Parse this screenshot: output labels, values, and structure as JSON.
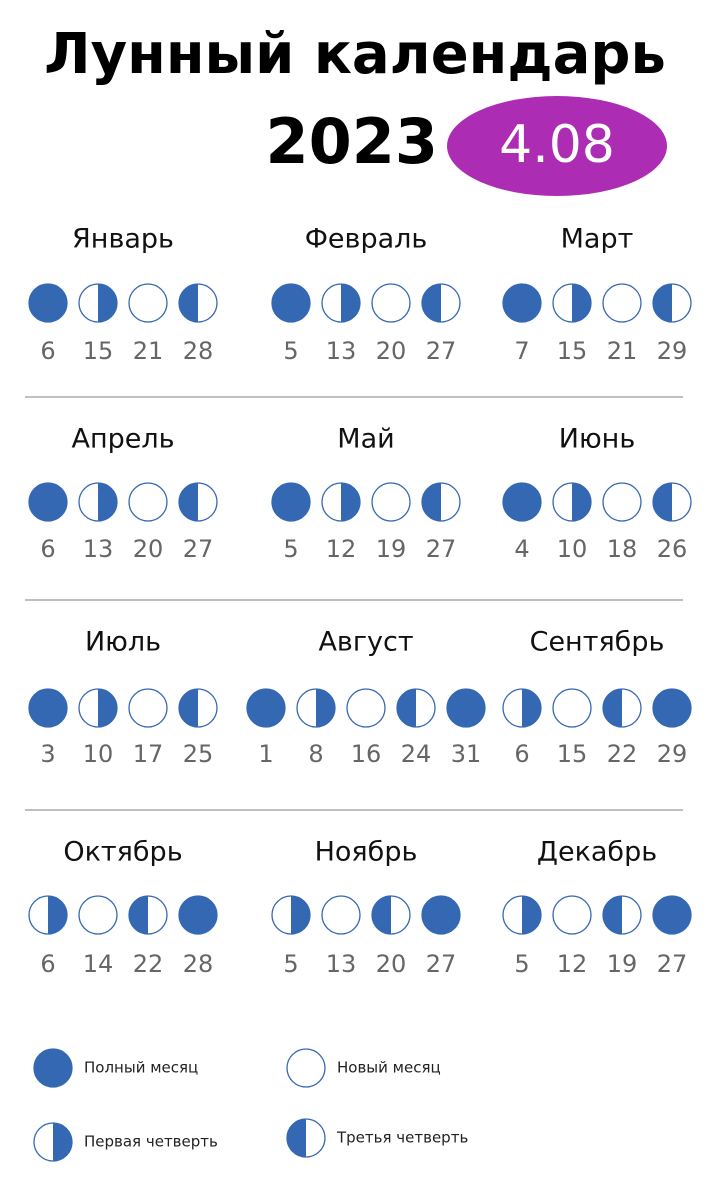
{
  "header": {
    "title": "Лунный календарь",
    "year": "2023",
    "badge": "4.08"
  },
  "months": [
    {
      "name": "Январь",
      "phases": [
        {
          "phase": "full",
          "day": "6"
        },
        {
          "phase": "first",
          "day": "15"
        },
        {
          "phase": "new",
          "day": "21"
        },
        {
          "phase": "third",
          "day": "28"
        }
      ]
    },
    {
      "name": "Февраль",
      "phases": [
        {
          "phase": "full",
          "day": "5"
        },
        {
          "phase": "first",
          "day": "13"
        },
        {
          "phase": "new",
          "day": "20"
        },
        {
          "phase": "third",
          "day": "27"
        }
      ]
    },
    {
      "name": "Март",
      "phases": [
        {
          "phase": "full",
          "day": "7"
        },
        {
          "phase": "first",
          "day": "15"
        },
        {
          "phase": "new",
          "day": "21"
        },
        {
          "phase": "third",
          "day": "29"
        }
      ]
    },
    {
      "name": "Апрель",
      "phases": [
        {
          "phase": "full",
          "day": "6"
        },
        {
          "phase": "first",
          "day": "13"
        },
        {
          "phase": "new",
          "day": "20"
        },
        {
          "phase": "third",
          "day": "27"
        }
      ]
    },
    {
      "name": "Май",
      "phases": [
        {
          "phase": "full",
          "day": "5"
        },
        {
          "phase": "first",
          "day": "12"
        },
        {
          "phase": "new",
          "day": "19"
        },
        {
          "phase": "third",
          "day": "27"
        }
      ]
    },
    {
      "name": "Июнь",
      "phases": [
        {
          "phase": "full",
          "day": "4"
        },
        {
          "phase": "first",
          "day": "10"
        },
        {
          "phase": "new",
          "day": "18"
        },
        {
          "phase": "third",
          "day": "26"
        }
      ]
    },
    {
      "name": "Июль",
      "phases": [
        {
          "phase": "full",
          "day": "3"
        },
        {
          "phase": "first",
          "day": "10"
        },
        {
          "phase": "new",
          "day": "17"
        },
        {
          "phase": "third",
          "day": "25"
        }
      ]
    },
    {
      "name": "Август",
      "phases": [
        {
          "phase": "full",
          "day": "1"
        },
        {
          "phase": "first",
          "day": "8"
        },
        {
          "phase": "new",
          "day": "16"
        },
        {
          "phase": "third",
          "day": "24"
        },
        {
          "phase": "full",
          "day": "31"
        }
      ]
    },
    {
      "name": "Сентябрь",
      "phases": [
        {
          "phase": "first",
          "day": "6"
        },
        {
          "phase": "new",
          "day": "15"
        },
        {
          "phase": "third",
          "day": "22"
        },
        {
          "phase": "full",
          "day": "29"
        }
      ]
    },
    {
      "name": "Октябрь",
      "phases": [
        {
          "phase": "first",
          "day": "6"
        },
        {
          "phase": "new",
          "day": "14"
        },
        {
          "phase": "third",
          "day": "22"
        },
        {
          "phase": "full",
          "day": "28"
        }
      ]
    },
    {
      "name": "Ноябрь",
      "phases": [
        {
          "phase": "first",
          "day": "5"
        },
        {
          "phase": "new",
          "day": "13"
        },
        {
          "phase": "third",
          "day": "20"
        },
        {
          "phase": "full",
          "day": "27"
        }
      ]
    },
    {
      "name": "Декабрь",
      "phases": [
        {
          "phase": "first",
          "day": "5"
        },
        {
          "phase": "new",
          "day": "12"
        },
        {
          "phase": "third",
          "day": "19"
        },
        {
          "phase": "full",
          "day": "27"
        }
      ]
    }
  ],
  "legend": [
    {
      "phase": "full",
      "label": "Полный месяц"
    },
    {
      "phase": "new",
      "label": "Новый месяц"
    },
    {
      "phase": "first",
      "label": "Первая четверть"
    },
    {
      "phase": "third",
      "label": "Третья четверть"
    }
  ]
}
